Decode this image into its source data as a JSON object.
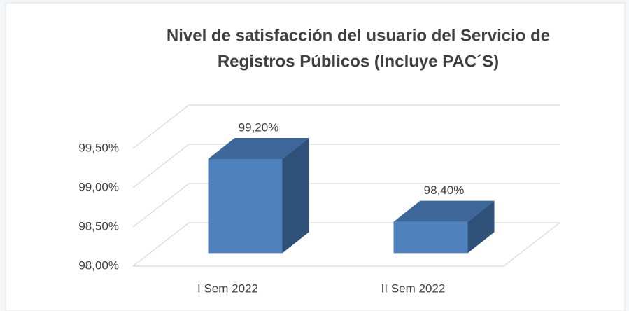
{
  "chart_data": {
    "type": "bar3d",
    "title": [
      "Nivel de satisfacción del usuario del Servicio de",
      "Registros Públicos (Incluye PAC´S)"
    ],
    "categories": [
      "I Sem 2022",
      "II Sem 2022"
    ],
    "values": [
      99.2,
      98.4
    ],
    "value_labels": [
      "99,20%",
      "98,40%"
    ],
    "color": "#4f81bd",
    "ylim": [
      98,
      99.5
    ],
    "yticks": [
      {
        "value": 98,
        "label": "98,00%"
      },
      {
        "value": 98.5,
        "label": "98,50%"
      },
      {
        "value": 99,
        "label": "99,00%"
      },
      {
        "value": 99.5,
        "label": "99,50%"
      }
    ],
    "grid": true
  }
}
